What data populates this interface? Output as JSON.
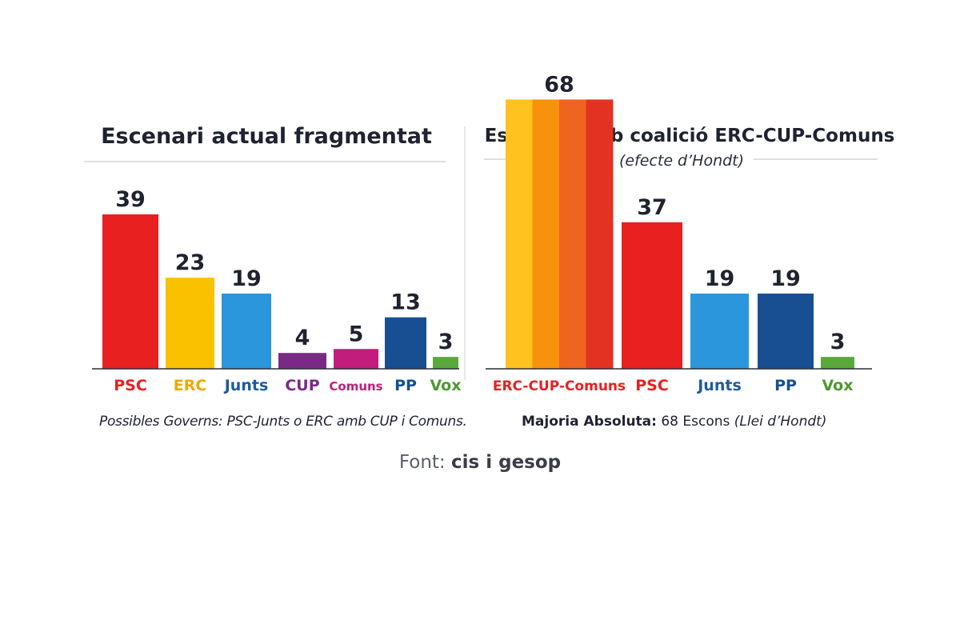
{
  "chart_data": [
    {
      "type": "bar",
      "title": "Escenari actual fragmentat",
      "categories": [
        "PSC",
        "ERC",
        "Junts",
        "CUP",
        "Comuns",
        "PP",
        "Vox"
      ],
      "values": [
        39,
        23,
        19,
        4,
        5,
        13,
        3
      ],
      "colors": [
        "#e82020",
        "#f9c100",
        "#2c96dc",
        "#7a2a86",
        "#c21c7c",
        "#184f92",
        "#5aa83a"
      ],
      "label_colors": [
        "#e82020",
        "#f0a800",
        "#1c5aa0",
        "#7a2a86",
        "#c21c7c",
        "#184f92",
        "#4a9a2e"
      ],
      "caption": "Possibles Governs: PSC-Junts o ERC amb CUP i Comuns."
    },
    {
      "type": "bar",
      "title": "Escenari amb coalició ERC-CUP-Comuns",
      "subtitle": "(efecte d’Hondt)",
      "categories": [
        "ERC-CUP-Comuns",
        "PSC",
        "Junts",
        "PP",
        "Vox"
      ],
      "values": [
        68,
        37,
        19,
        19,
        3
      ],
      "colors": [
        "gradient-stripes",
        "#e82020",
        "#2c96dc",
        "#184f92",
        "#5aa83a"
      ],
      "stripe_colors": [
        "#ffc21e",
        "#f7920d",
        "#ef6420",
        "#e43222"
      ],
      "label_colors": [
        "#e82020",
        "#e82020",
        "#1c5aa0",
        "#184f92",
        "#4a9a2e"
      ],
      "caption": {
        "strong": "Majoria Absoluta:",
        "normal": " 68 Escons ",
        "italic": "(Llei d’Hondt)"
      }
    }
  ],
  "source": {
    "prefix": "Font: ",
    "name": "cis i gesop"
  }
}
